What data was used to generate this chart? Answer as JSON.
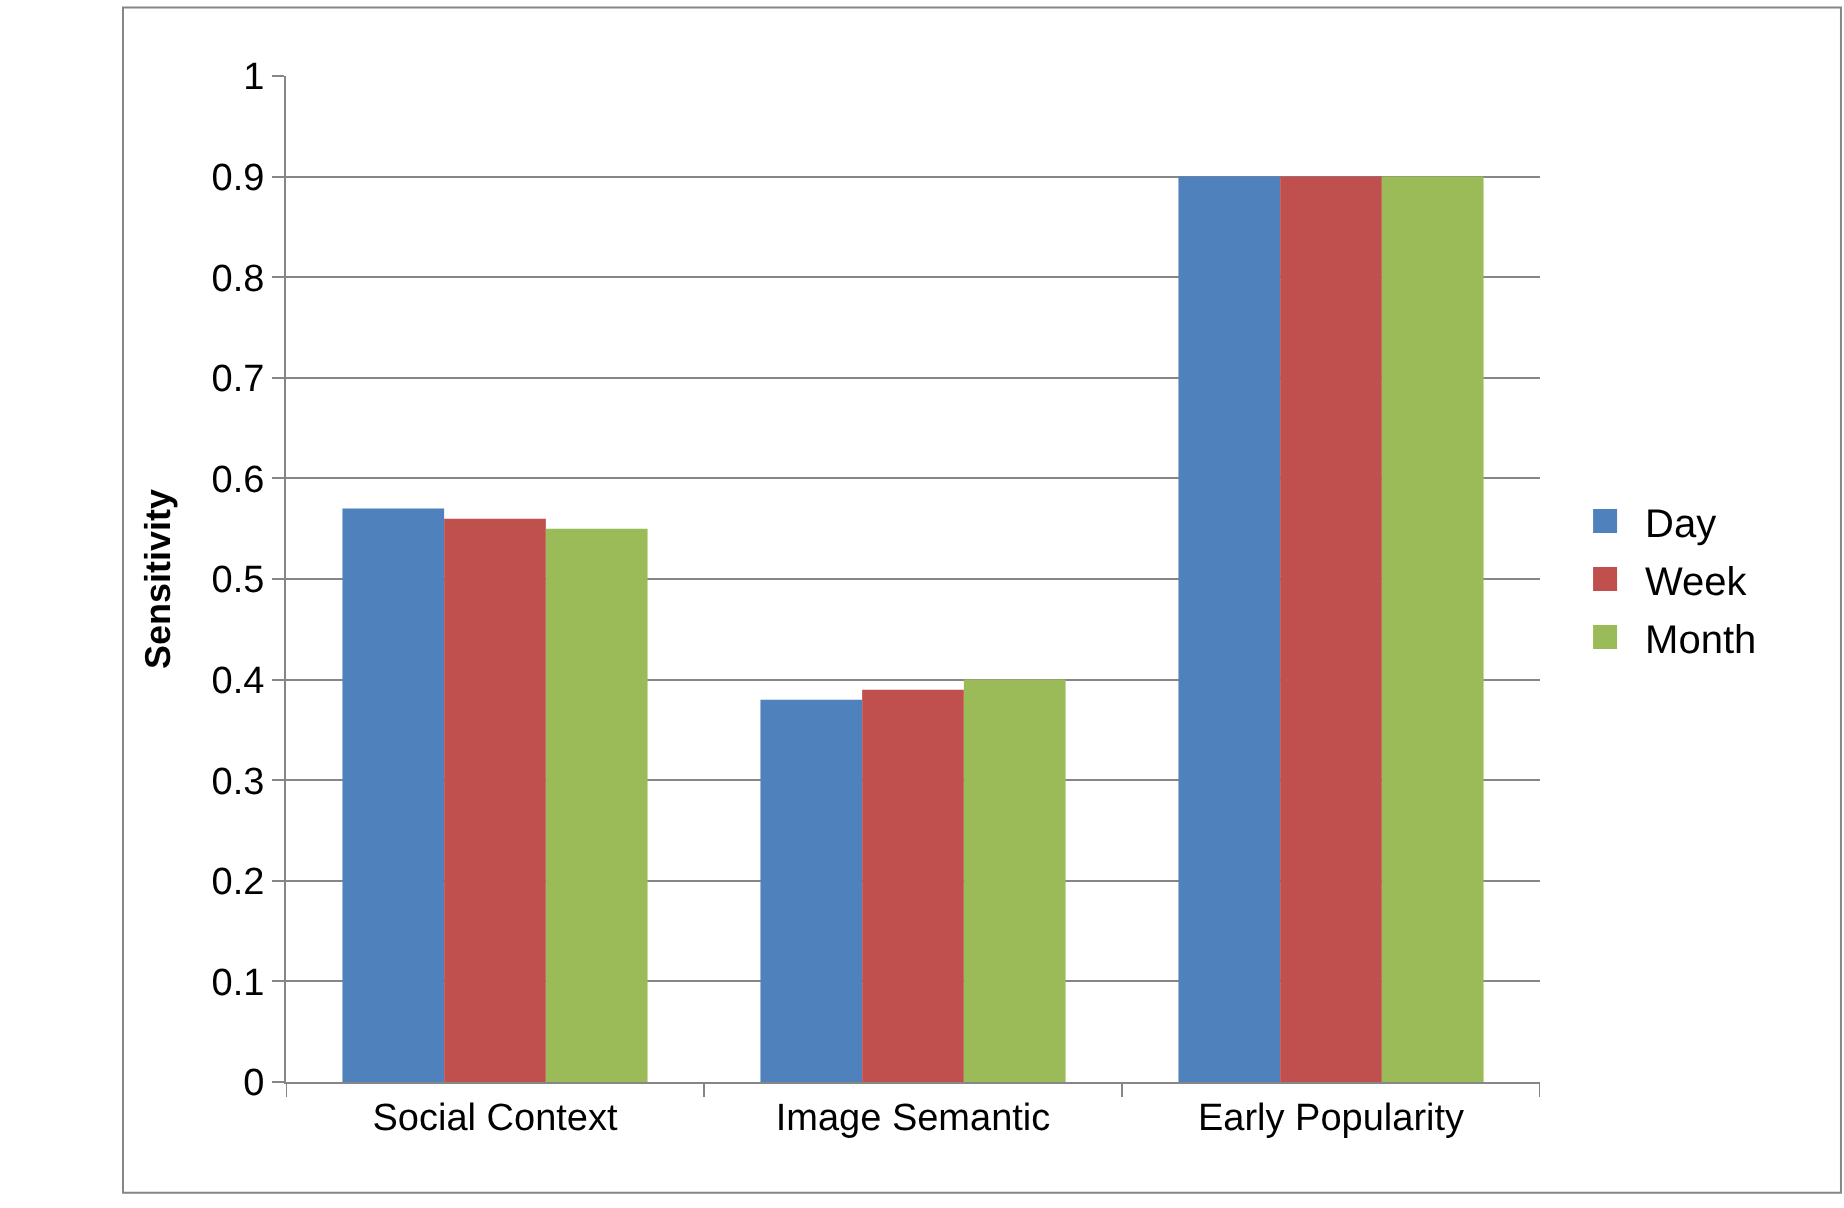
{
  "chart_data": {
    "type": "bar",
    "ylabel": "Sensitivity",
    "categories": [
      "Social Context",
      "Image Semantic",
      "Early Popularity"
    ],
    "series": [
      {
        "name": "Day",
        "color": "#4f81bd",
        "values": [
          0.57,
          0.38,
          0.9
        ]
      },
      {
        "name": "Week",
        "color": "#c0504d",
        "values": [
          0.56,
          0.39,
          0.9
        ]
      },
      {
        "name": "Month",
        "color": "#9bbb59",
        "values": [
          0.55,
          0.4,
          0.9
        ]
      }
    ],
    "ylim": [
      0,
      1
    ],
    "yticks": [
      0,
      0.1,
      0.2,
      0.3,
      0.4,
      0.5,
      0.6,
      0.7,
      0.8,
      0.9,
      1
    ],
    "grid": "y",
    "legend": "right"
  }
}
